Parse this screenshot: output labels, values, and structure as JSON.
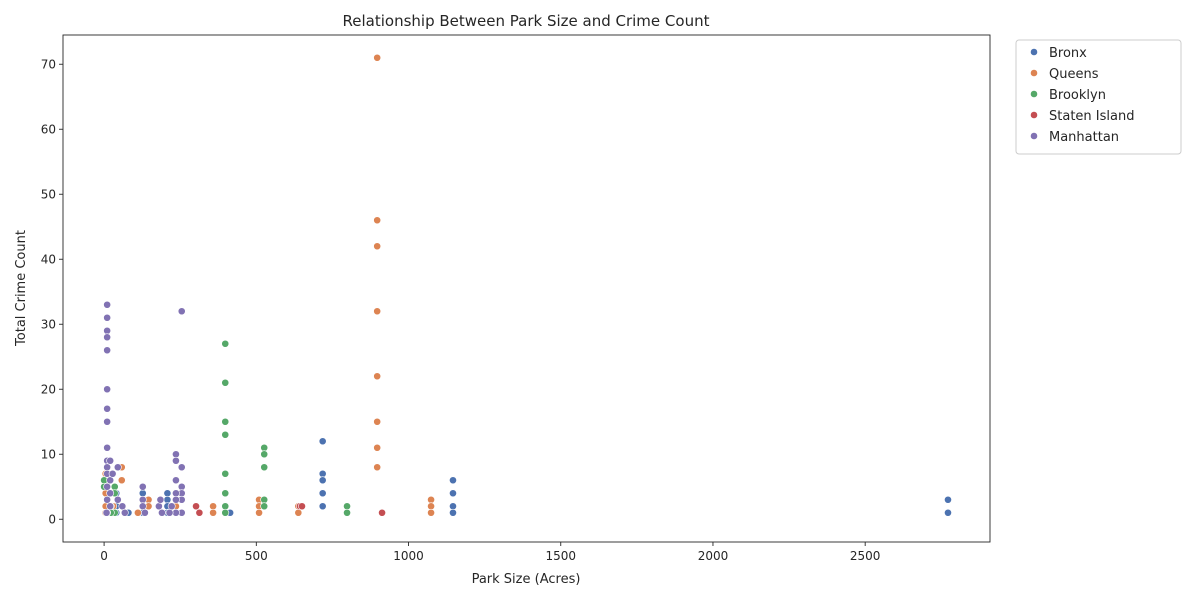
{
  "chart_data": {
    "type": "scatter",
    "title": "Relationship Between Park Size and Crime Count",
    "xlabel": "Park Size (Acres)",
    "ylabel": "Total Crime Count",
    "xlim": [
      -135,
      2910
    ],
    "ylim": [
      -3.5,
      74.5
    ],
    "xticks": [
      0,
      500,
      1000,
      1500,
      2000,
      2500
    ],
    "yticks": [
      0,
      10,
      20,
      30,
      40,
      50,
      60,
      70
    ],
    "grid": false,
    "legend_position": "outside-top-right",
    "series": [
      {
        "name": "Bronx",
        "color": "#4c72b0",
        "points": [
          [
            2772,
            3
          ],
          [
            2772,
            1
          ],
          [
            1146,
            6
          ],
          [
            1146,
            4
          ],
          [
            1146,
            2
          ],
          [
            1146,
            1
          ],
          [
            718,
            12
          ],
          [
            718,
            7
          ],
          [
            718,
            6
          ],
          [
            718,
            4
          ],
          [
            718,
            2
          ],
          [
            414,
            1
          ],
          [
            208,
            4
          ],
          [
            208,
            3
          ],
          [
            208,
            2
          ],
          [
            208,
            1
          ],
          [
            127,
            4
          ],
          [
            127,
            2
          ],
          [
            127,
            1
          ],
          [
            80,
            1
          ],
          [
            40,
            4
          ],
          [
            40,
            2
          ],
          [
            40,
            1
          ],
          [
            15,
            1
          ],
          [
            10,
            2
          ]
        ]
      },
      {
        "name": "Queens",
        "color": "#dd8452",
        "points": [
          [
            897,
            71
          ],
          [
            897,
            46
          ],
          [
            897,
            42
          ],
          [
            897,
            32
          ],
          [
            897,
            22
          ],
          [
            897,
            15
          ],
          [
            897,
            11
          ],
          [
            897,
            8
          ],
          [
            1074,
            3
          ],
          [
            1074,
            2
          ],
          [
            1074,
            1
          ],
          [
            638,
            2
          ],
          [
            638,
            1
          ],
          [
            509,
            3
          ],
          [
            509,
            2
          ],
          [
            509,
            1
          ],
          [
            358,
            2
          ],
          [
            358,
            1
          ],
          [
            236,
            2
          ],
          [
            236,
            1
          ],
          [
            146,
            3
          ],
          [
            146,
            2
          ],
          [
            111,
            1
          ],
          [
            58,
            8
          ],
          [
            58,
            6
          ],
          [
            30,
            2
          ],
          [
            5,
            7
          ],
          [
            5,
            4
          ],
          [
            5,
            2
          ],
          [
            5,
            1
          ]
        ]
      },
      {
        "name": "Brooklyn",
        "color": "#55a868",
        "points": [
          [
            398,
            27
          ],
          [
            398,
            21
          ],
          [
            398,
            15
          ],
          [
            398,
            13
          ],
          [
            398,
            7
          ],
          [
            398,
            4
          ],
          [
            398,
            2
          ],
          [
            398,
            1
          ],
          [
            526,
            11
          ],
          [
            526,
            10
          ],
          [
            526,
            8
          ],
          [
            526,
            3
          ],
          [
            526,
            2
          ],
          [
            798,
            2
          ],
          [
            798,
            1
          ],
          [
            35,
            5
          ],
          [
            35,
            4
          ],
          [
            35,
            1
          ],
          [
            0,
            6
          ],
          [
            0,
            5
          ],
          [
            22,
            2
          ],
          [
            22,
            1
          ]
        ]
      },
      {
        "name": "Staten Island",
        "color": "#c44e52",
        "points": [
          [
            302,
            2
          ],
          [
            313,
            1
          ],
          [
            643,
            2
          ],
          [
            650,
            2
          ],
          [
            913,
            1
          ]
        ]
      },
      {
        "name": "Manhattan",
        "color": "#8172b3",
        "points": [
          [
            10,
            33
          ],
          [
            10,
            31
          ],
          [
            10,
            29
          ],
          [
            10,
            28
          ],
          [
            10,
            26
          ],
          [
            10,
            20
          ],
          [
            10,
            17
          ],
          [
            10,
            15
          ],
          [
            10,
            11
          ],
          [
            10,
            9
          ],
          [
            10,
            8
          ],
          [
            10,
            7
          ],
          [
            10,
            5
          ],
          [
            10,
            3
          ],
          [
            10,
            1
          ],
          [
            20,
            9
          ],
          [
            20,
            6
          ],
          [
            20,
            4
          ],
          [
            20,
            2
          ],
          [
            255,
            32
          ],
          [
            255,
            8
          ],
          [
            255,
            5
          ],
          [
            255,
            4
          ],
          [
            255,
            3
          ],
          [
            255,
            1
          ],
          [
            236,
            10
          ],
          [
            236,
            9
          ],
          [
            236,
            6
          ],
          [
            236,
            4
          ],
          [
            236,
            3
          ],
          [
            236,
            1
          ],
          [
            127,
            5
          ],
          [
            127,
            3
          ],
          [
            127,
            2
          ],
          [
            134,
            1
          ],
          [
            180,
            2
          ],
          [
            185,
            3
          ],
          [
            190,
            1
          ],
          [
            215,
            1
          ],
          [
            222,
            2
          ],
          [
            45,
            8
          ],
          [
            45,
            3
          ],
          [
            60,
            2
          ],
          [
            68,
            1
          ],
          [
            8,
            1
          ],
          [
            28,
            7
          ]
        ]
      }
    ]
  }
}
